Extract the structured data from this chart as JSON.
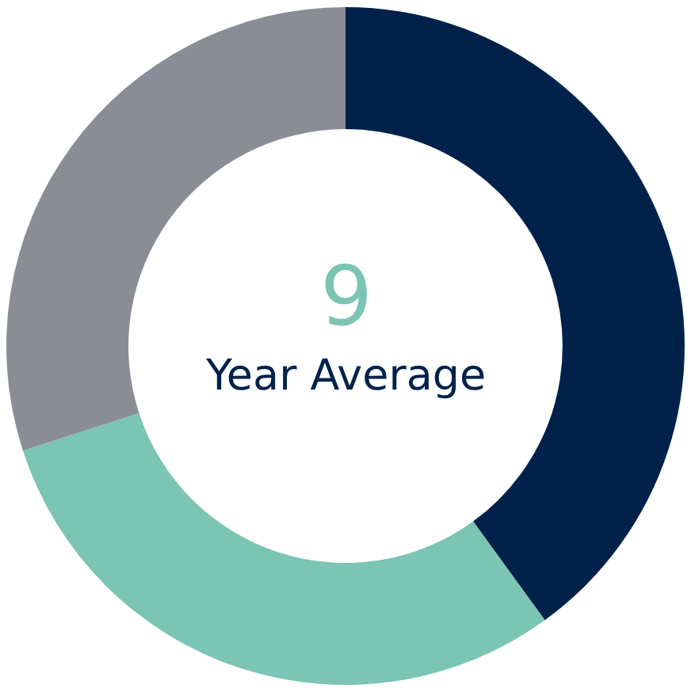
{
  "chart_data": {
    "type": "donut",
    "categories": [
      null,
      null,
      null
    ],
    "values": [
      40,
      30,
      30
    ],
    "colors": [
      "#00224a",
      "#7cc4b4",
      "#8a8d96"
    ],
    "annotations": [
      "9",
      "Year Average"
    ],
    "legend": false
  }
}
